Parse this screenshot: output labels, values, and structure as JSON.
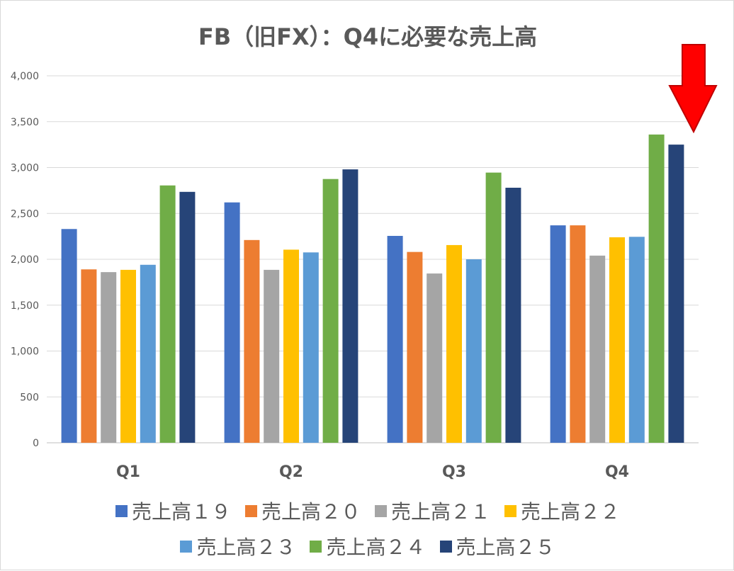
{
  "chart_data": {
    "type": "bar",
    "title": "FB（旧FX）：Q4に必要な売上高",
    "xlabel": "",
    "ylabel": "",
    "ylim": [
      0,
      4000
    ],
    "yticks": [
      0,
      500,
      1000,
      1500,
      2000,
      2500,
      3000,
      3500,
      4000
    ],
    "ytick_labels": [
      "0",
      "500",
      "1,000",
      "1,500",
      "2,000",
      "2,500",
      "3,000",
      "3,500",
      "4,000"
    ],
    "grid": true,
    "legend_position": "bottom",
    "categories": [
      "Q1",
      "Q2",
      "Q3",
      "Q4"
    ],
    "series": [
      {
        "name": "売上高１９",
        "color": "#4472c4",
        "values": [
          2330,
          2620,
          2255,
          2370
        ]
      },
      {
        "name": "売上高２０",
        "color": "#ed7d31",
        "values": [
          1890,
          2210,
          2080,
          2370
        ]
      },
      {
        "name": "売上高２１",
        "color": "#a5a5a5",
        "values": [
          1860,
          1885,
          1845,
          2040
        ]
      },
      {
        "name": "売上高２２",
        "color": "#ffc000",
        "values": [
          1885,
          2105,
          2155,
          2240
        ]
      },
      {
        "name": "売上高２３",
        "color": "#5b9bd5",
        "values": [
          1940,
          2075,
          2000,
          2245
        ]
      },
      {
        "name": "売上高２４",
        "color": "#70ad47",
        "values": [
          2805,
          2875,
          2945,
          3360
        ]
      },
      {
        "name": "売上高２５",
        "color": "#264478",
        "values": [
          2735,
          2980,
          2780,
          3250
        ]
      }
    ],
    "annotation": {
      "type": "arrow",
      "color": "#ff0000",
      "target": "Q4 売上高２５"
    }
  }
}
